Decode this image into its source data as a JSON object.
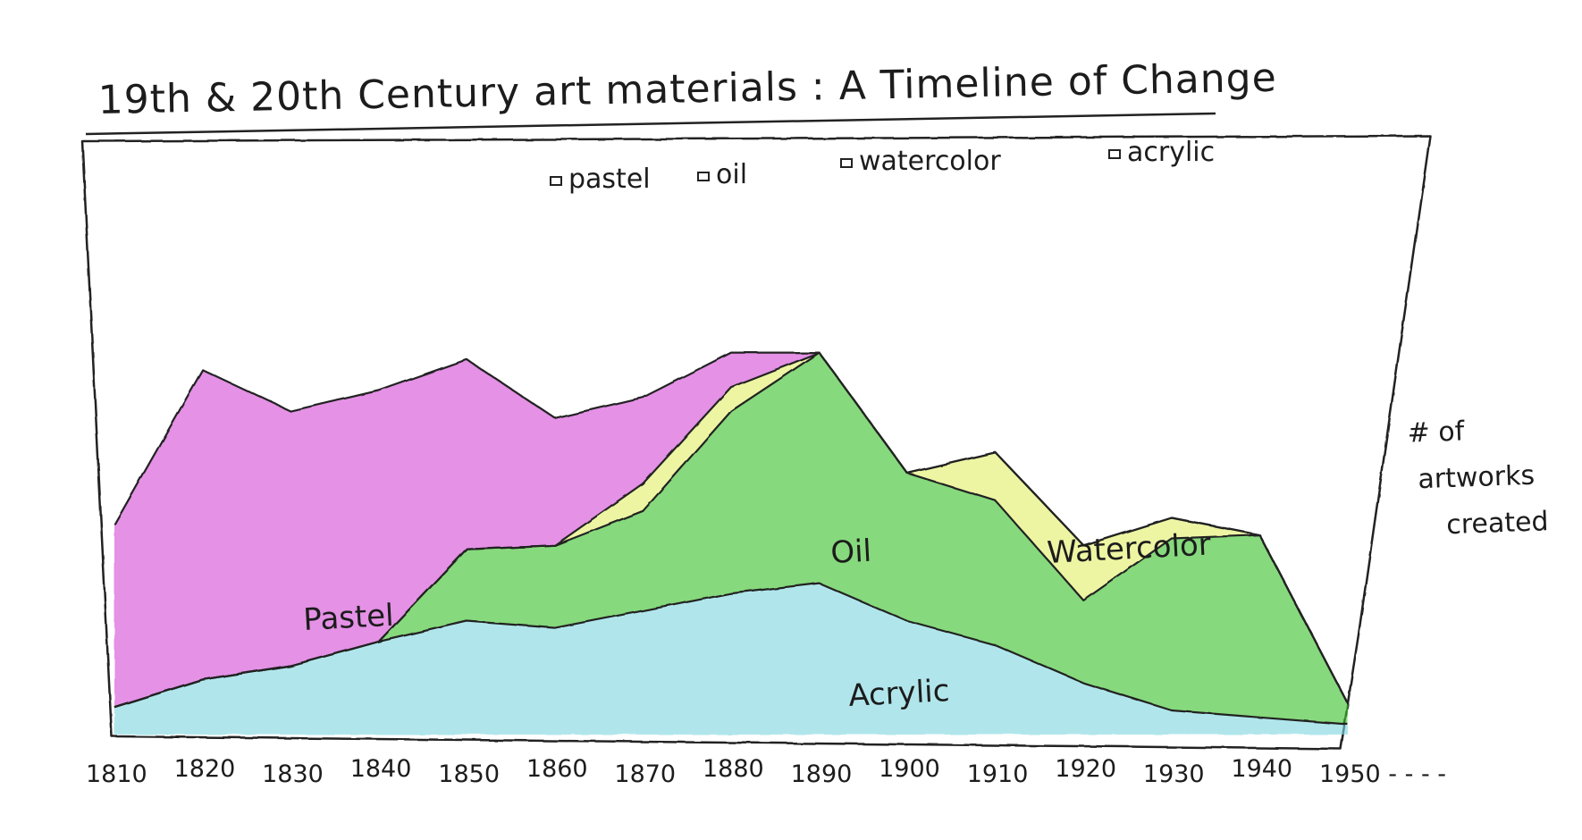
{
  "chart_data": {
    "type": "area",
    "title": "19th & 20th Century art materials : A Timeline of Change",
    "ylabel": "# of artworks created",
    "xlabel": "",
    "x_tick_labels": [
      "1810",
      "1820",
      "1830",
      "1840",
      "1850",
      "1860",
      "1870",
      "1880",
      "1890",
      "1900",
      "1910",
      "1920",
      "1930",
      "1940",
      "1950 - - - -"
    ],
    "x": [
      1810,
      1820,
      1830,
      1840,
      1850,
      1860,
      1870,
      1880,
      1890,
      1900,
      1910,
      1920,
      1930,
      1940,
      1950
    ],
    "legend": {
      "placement": "top-center",
      "entries": [
        "pastel",
        "oil",
        "watercolor",
        "acrylic"
      ]
    },
    "series": [
      {
        "name": "Acrylic",
        "legend_label": "acrylic",
        "color": "#7fd6df",
        "values": [
          8,
          16,
          20,
          27,
          33,
          31,
          36,
          41,
          44,
          33,
          26,
          15,
          7,
          5,
          3
        ]
      },
      {
        "name": "Oil",
        "legend_label": "oil",
        "color": "#3ec22e",
        "values": [
          0,
          0,
          0,
          0,
          21,
          24,
          29,
          53,
          67,
          43,
          42,
          24,
          50,
          53,
          6
        ]
      },
      {
        "name": "Watercolor",
        "legend_label": "watercolor",
        "color": "#e2ef6a",
        "values": [
          0,
          0,
          0,
          0,
          0,
          0,
          8,
          7,
          0,
          0,
          14,
          16,
          6,
          0,
          0
        ]
      },
      {
        "name": "Pastel",
        "legend_label": "pastel",
        "color": "#d34fd6",
        "values": [
          53,
          90,
          74,
          73,
          55,
          37,
          25,
          10,
          0,
          0,
          0,
          0,
          0,
          0,
          0
        ]
      }
    ],
    "area_labels": [
      "Pastel",
      "Oil",
      "Watercolor",
      "Acrylic"
    ],
    "grid": false
  }
}
